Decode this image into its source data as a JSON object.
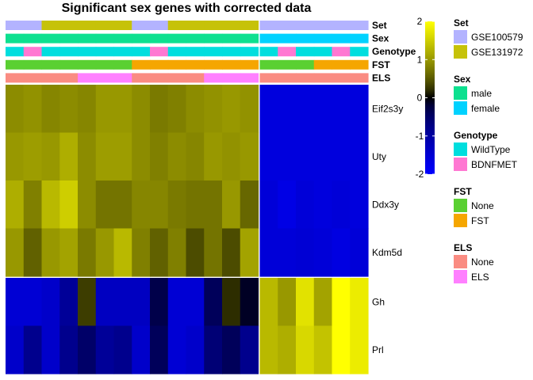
{
  "chart_data": {
    "type": "heatmap",
    "title": "Significant sex genes with corrected data",
    "n_samples": 20,
    "rows": [
      "Eif2s3y",
      "Uty",
      "Ddx3y",
      "Kdm5d",
      "Gh",
      "Prl"
    ],
    "values": [
      [
        0.9,
        0.95,
        0.85,
        0.9,
        0.85,
        1.0,
        1.0,
        0.9,
        0.75,
        0.8,
        0.9,
        0.95,
        1.0,
        0.95,
        -1.6,
        -1.6,
        -1.6,
        -1.6,
        -1.6,
        -1.6
      ],
      [
        1.0,
        1.05,
        1.0,
        1.2,
        0.9,
        1.05,
        1.05,
        0.9,
        0.8,
        0.9,
        0.85,
        1.0,
        0.95,
        1.0,
        -1.6,
        -1.6,
        -1.6,
        -1.6,
        -1.6,
        -1.6
      ],
      [
        1.2,
        0.8,
        1.3,
        1.5,
        0.9,
        0.7,
        0.7,
        0.85,
        0.85,
        0.75,
        0.7,
        0.7,
        1.0,
        0.6,
        -1.55,
        -1.7,
        -1.55,
        -1.6,
        -1.55,
        -1.6
      ],
      [
        1.0,
        0.55,
        1.0,
        1.1,
        0.75,
        1.0,
        1.3,
        0.8,
        0.55,
        0.8,
        0.4,
        0.7,
        0.4,
        1.1,
        -1.55,
        -1.55,
        -1.5,
        -1.55,
        -1.65,
        -1.55
      ],
      [
        -1.5,
        -1.5,
        -1.4,
        -0.9,
        0.3,
        -1.3,
        -1.3,
        -1.3,
        -0.3,
        -1.5,
        -1.5,
        -0.4,
        0.2,
        -0.1,
        1.3,
        1.0,
        1.7,
        1.1,
        2.0,
        1.8
      ],
      [
        -1.4,
        -0.8,
        -1.4,
        -0.8,
        -0.5,
        -0.9,
        -0.8,
        -1.4,
        -0.4,
        -1.5,
        -1.4,
        -0.6,
        -0.4,
        -0.8,
        1.3,
        1.2,
        1.6,
        1.4,
        2.0,
        1.8
      ]
    ],
    "row_split_after": 4,
    "column_split_after": 14,
    "annotations": [
      {
        "name": "Set",
        "values": [
          "GSE100579",
          "GSE100579",
          "GSE131972",
          "GSE131972",
          "GSE131972",
          "GSE131972",
          "GSE131972",
          "GSE100579",
          "GSE100579",
          "GSE131972",
          "GSE131972",
          "GSE131972",
          "GSE131972",
          "GSE131972",
          "GSE100579",
          "GSE100579",
          "GSE100579",
          "GSE100579",
          "GSE100579",
          "GSE100579"
        ]
      },
      {
        "name": "Sex",
        "values": [
          "male",
          "male",
          "male",
          "male",
          "male",
          "male",
          "male",
          "male",
          "male",
          "male",
          "male",
          "male",
          "male",
          "male",
          "female",
          "female",
          "female",
          "female",
          "female",
          "female"
        ]
      },
      {
        "name": "Genotype",
        "values": [
          "WildType",
          "BDNFMET",
          "WildType",
          "WildType",
          "WildType",
          "WildType",
          "WildType",
          "WildType",
          "BDNFMET",
          "WildType",
          "WildType",
          "WildType",
          "WildType",
          "WildType",
          "WildType",
          "BDNFMET",
          "WildType",
          "WildType",
          "BDNFMET",
          "WildType"
        ]
      },
      {
        "name": "FST",
        "values": [
          "None",
          "None",
          "None",
          "None",
          "None",
          "None",
          "None",
          "FST",
          "FST",
          "FST",
          "FST",
          "FST",
          "FST",
          "FST",
          "None",
          "None",
          "None",
          "FST",
          "FST",
          "FST"
        ]
      },
      {
        "name": "ELS",
        "values": [
          "None",
          "None",
          "None",
          "None",
          "ELS",
          "ELS",
          "ELS",
          "None",
          "None",
          "None",
          "None",
          "ELS",
          "ELS",
          "ELS",
          "None",
          "None",
          "None",
          "None",
          "None",
          "None"
        ]
      }
    ],
    "colorbar": {
      "ticks": [
        2,
        1,
        0,
        -1,
        -2
      ],
      "range": [
        -2,
        2
      ],
      "stops": [
        "#0000ff",
        "#000000",
        "#ffff00"
      ]
    },
    "legends": [
      {
        "title": "Set",
        "items": [
          {
            "label": "GSE100579",
            "color": "#b3b3ff"
          },
          {
            "label": "GSE131972",
            "color": "#c6c209"
          }
        ]
      },
      {
        "title": "Sex",
        "items": [
          {
            "label": "male",
            "color": "#0de08f"
          },
          {
            "label": "female",
            "color": "#00d2ff"
          }
        ]
      },
      {
        "title": "Genotype",
        "items": [
          {
            "label": "WildType",
            "color": "#00dede"
          },
          {
            "label": "BDNFMET",
            "color": "#ff78d2"
          }
        ]
      },
      {
        "title": "FST",
        "items": [
          {
            "label": "None",
            "color": "#5ad032"
          },
          {
            "label": "FST",
            "color": "#f5a600"
          }
        ]
      },
      {
        "title": "ELS",
        "items": [
          {
            "label": "None",
            "color": "#fa8c82"
          },
          {
            "label": "ELS",
            "color": "#ff80ff"
          }
        ]
      }
    ]
  }
}
